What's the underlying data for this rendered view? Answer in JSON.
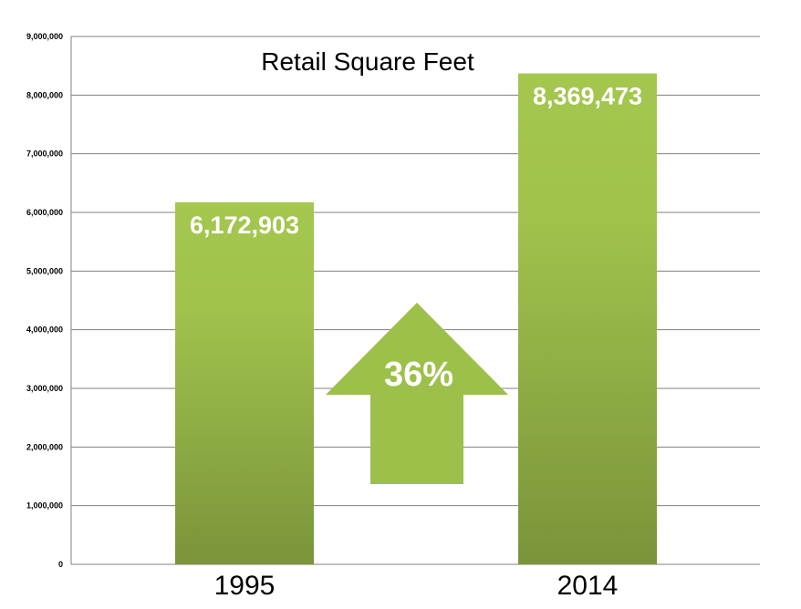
{
  "chart_data": {
    "type": "bar",
    "title": "Retail Square Feet",
    "xlabel": "",
    "ylabel": "",
    "categories": [
      "1995",
      "2014"
    ],
    "values": [
      6172903,
      8369473
    ],
    "data_labels": [
      "6,172,903",
      "8,369,473"
    ],
    "ylim": [
      0,
      9000000
    ],
    "yticks": [
      0,
      1000000,
      2000000,
      3000000,
      4000000,
      5000000,
      6000000,
      7000000,
      8000000,
      9000000
    ],
    "ytick_labels": [
      "0",
      "1,000,000",
      "2,000,000",
      "3,000,000",
      "4,000,000",
      "5,000,000",
      "6,000,000",
      "7,000,000",
      "8,000,000",
      "9,000,000"
    ],
    "grid": true,
    "legend": "none",
    "annotation": {
      "text": "36%",
      "shape": "up-arrow"
    },
    "colors": {
      "bar_top": "#a4c74e",
      "bar_bottom": "#7a943a",
      "arrow": "#9cc04a",
      "gridline": "#808080",
      "data_label": "#ffffff"
    }
  }
}
